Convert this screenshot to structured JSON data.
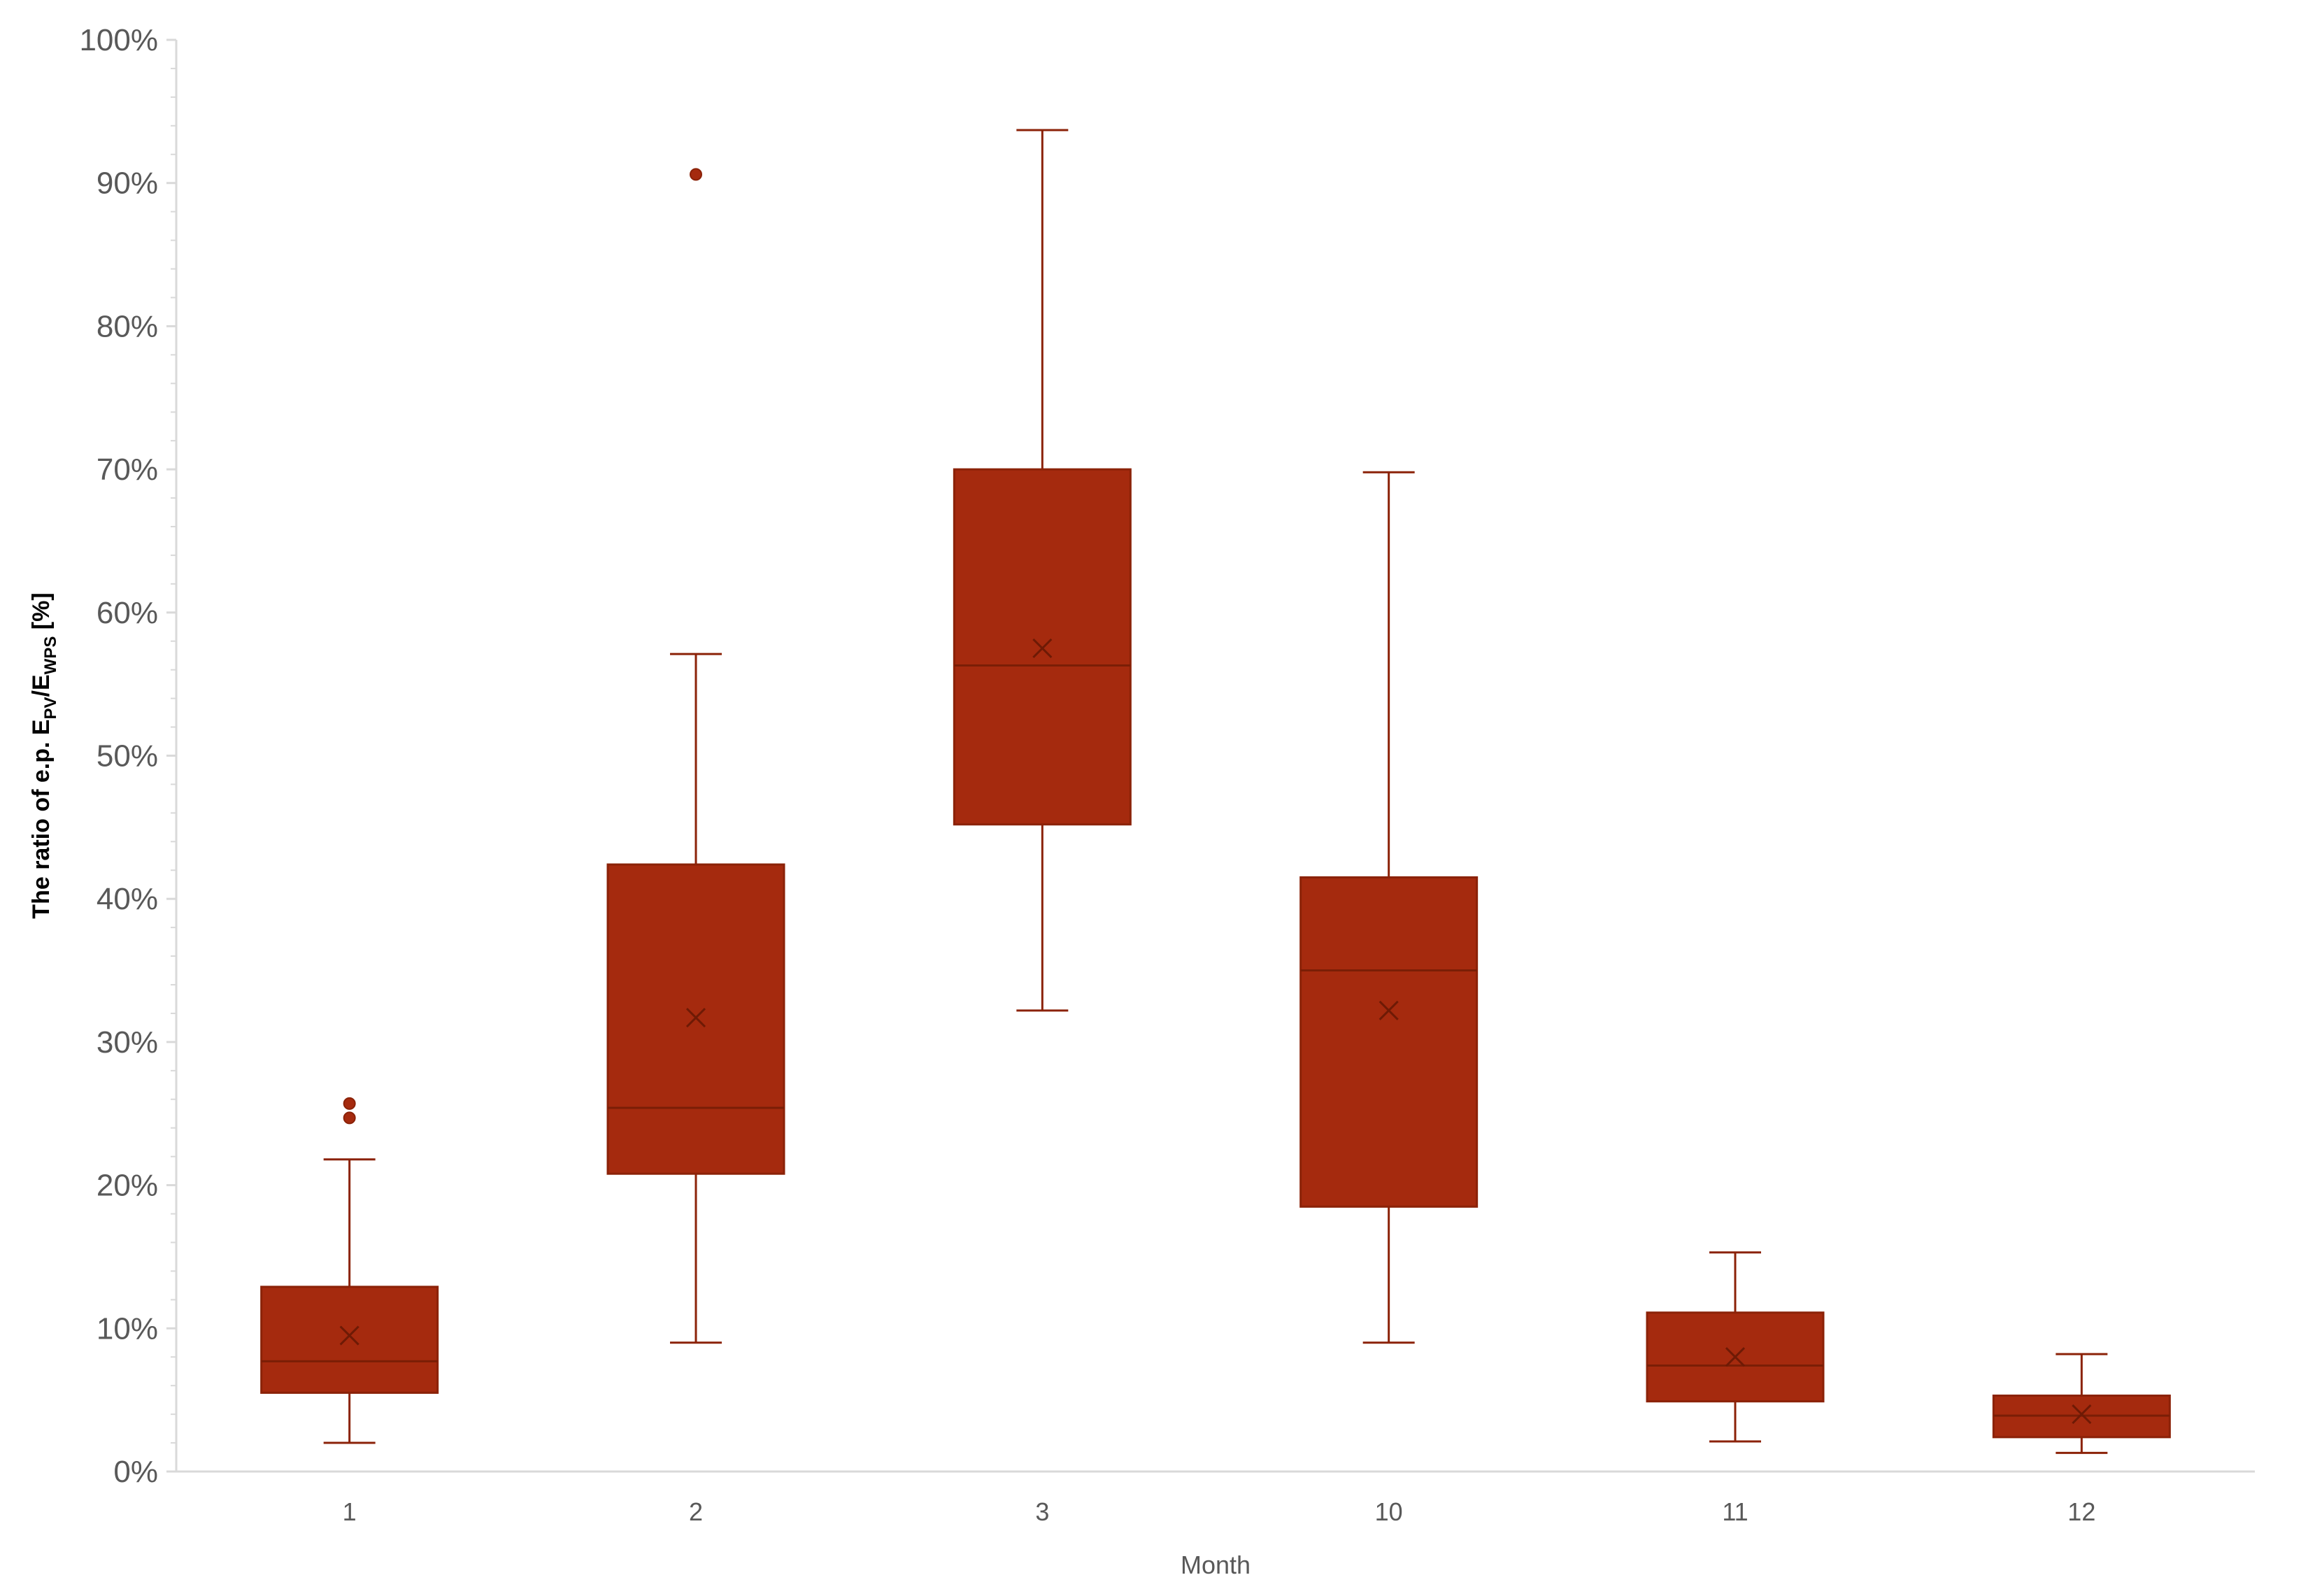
{
  "chart_data": {
    "type": "box",
    "xlabel": "Month",
    "ylabel": {
      "prefix": "The ratio of e.p. E",
      "sub1": "PV",
      "mid": "/E",
      "sub2": "WPS",
      "suffix": " [%]"
    },
    "ylim": [
      0,
      100
    ],
    "yticks": [
      "0%",
      "10%",
      "20%",
      "30%",
      "40%",
      "50%",
      "60%",
      "70%",
      "80%",
      "90%",
      "100%"
    ],
    "grid": false,
    "legend": "none",
    "colors": {
      "box": "#a52a0e",
      "stroke": "#8b2208",
      "axis": "#d9d9d9",
      "text": "#595959"
    },
    "categories": [
      "1",
      "2",
      "3",
      "10",
      "11",
      "12"
    ],
    "boxes": [
      {
        "category": "1",
        "min": 2.0,
        "q1": 5.5,
        "median": 7.7,
        "q3": 12.9,
        "max": 21.8,
        "mean": 9.5,
        "outliers": [
          25.7,
          24.7
        ]
      },
      {
        "category": "2",
        "min": 9.0,
        "q1": 20.8,
        "median": 25.4,
        "q3": 42.4,
        "max": 57.1,
        "mean": 31.7,
        "outliers": [
          90.6
        ]
      },
      {
        "category": "3",
        "min": 32.2,
        "q1": 45.2,
        "median": 56.3,
        "q3": 70.0,
        "max": 93.7,
        "mean": 57.5,
        "outliers": []
      },
      {
        "category": "10",
        "min": 9.0,
        "q1": 18.5,
        "median": 35.0,
        "q3": 41.5,
        "max": 69.8,
        "mean": 32.2,
        "outliers": []
      },
      {
        "category": "11",
        "min": 2.1,
        "q1": 4.9,
        "median": 7.4,
        "q3": 11.1,
        "max": 15.3,
        "mean": 8.0,
        "outliers": []
      },
      {
        "category": "12",
        "min": 1.3,
        "q1": 2.4,
        "median": 3.9,
        "q3": 5.3,
        "max": 8.2,
        "mean": 4.0,
        "outliers": []
      }
    ]
  }
}
